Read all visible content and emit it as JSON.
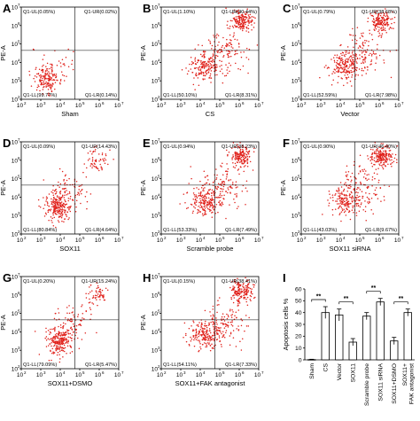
{
  "chart_data": [
    {
      "type": "scatter",
      "panel": "A",
      "xlabel": "Sham",
      "ylabel": "PE-A",
      "ticks": [
        "10",
        "10",
        "10",
        "10",
        "10",
        "10"
      ],
      "tick_exponents": [
        "2",
        "3",
        "4",
        "5",
        "6",
        "7"
      ],
      "quadrants": {
        "UL": "Q1-UL(0.05%)",
        "UR": "Q1-UR(0.02%)",
        "LL": "Q1-LL(99.77%)",
        "LR": "Q1-LR(0.14%)"
      },
      "point_color": "#e0201a",
      "clusters": [
        {
          "cx": 3.3,
          "cy": 3.1,
          "sx": 0.35,
          "sy": 0.35,
          "n": 150
        },
        {
          "cx": 3.8,
          "cy": 3.8,
          "sx": 0.6,
          "sy": 0.6,
          "n": 40
        }
      ]
    },
    {
      "type": "scatter",
      "panel": "B",
      "xlabel": "CS",
      "ylabel": "PE-A",
      "ticks": [
        "10",
        "10",
        "10",
        "10",
        "10",
        "10"
      ],
      "tick_exponents": [
        "2",
        "3",
        "4",
        "5",
        "6",
        "7"
      ],
      "quadrants": {
        "UL": "Q1-UL(1.10%)",
        "UR": "Q1-UR(40.44%)",
        "LL": "Q1-LL(50.10%)",
        "LR": "Q1-LR(8.31%)"
      },
      "point_color": "#e0201a",
      "clusters": [
        {
          "cx": 6.1,
          "cy": 6.2,
          "sx": 0.28,
          "sy": 0.28,
          "n": 170
        },
        {
          "cx": 4.3,
          "cy": 3.8,
          "sx": 0.45,
          "sy": 0.4,
          "n": 190
        },
        {
          "cx": 5.2,
          "cy": 4.6,
          "sx": 0.6,
          "sy": 0.6,
          "n": 110
        }
      ]
    },
    {
      "type": "scatter",
      "panel": "C",
      "xlabel": "Vector",
      "ylabel": "PE-A",
      "ticks": [
        "10",
        "10",
        "10",
        "10",
        "10",
        "10"
      ],
      "tick_exponents": [
        "2",
        "3",
        "4",
        "5",
        "6",
        "7"
      ],
      "quadrants": {
        "UL": "Q1-UL(0.79%)",
        "UR": "Q1-UR(38.68%)",
        "LL": "Q1-LL(52.59%)",
        "LR": "Q1-LR(7.98%)"
      },
      "point_color": "#e0201a",
      "clusters": [
        {
          "cx": 6.1,
          "cy": 6.2,
          "sx": 0.28,
          "sy": 0.28,
          "n": 160
        },
        {
          "cx": 4.3,
          "cy": 3.8,
          "sx": 0.45,
          "sy": 0.4,
          "n": 200
        },
        {
          "cx": 5.2,
          "cy": 4.6,
          "sx": 0.6,
          "sy": 0.6,
          "n": 110
        }
      ]
    },
    {
      "type": "scatter",
      "panel": "D",
      "xlabel": "SOX11",
      "ylabel": "PE-A",
      "ticks": [
        "10",
        "10",
        "10",
        "10",
        "10",
        "10"
      ],
      "tick_exponents": [
        "2",
        "3",
        "4",
        "5",
        "6",
        "7"
      ],
      "quadrants": {
        "UL": "Q1-UL(0.09%)",
        "UR": "Q1-UR(14.43%)",
        "LL": "Q1-LL(80.84%)",
        "LR": "Q1-LR(4.64%)"
      },
      "point_color": "#e0201a",
      "clusters": [
        {
          "cx": 3.9,
          "cy": 3.5,
          "sx": 0.35,
          "sy": 0.4,
          "n": 220
        },
        {
          "cx": 4.6,
          "cy": 4.5,
          "sx": 0.45,
          "sy": 0.5,
          "n": 80
        },
        {
          "cx": 5.9,
          "cy": 6.0,
          "sx": 0.3,
          "sy": 0.3,
          "n": 60
        }
      ]
    },
    {
      "type": "scatter",
      "panel": "E",
      "xlabel": "Scramble probe",
      "ylabel": "PE-A",
      "ticks": [
        "10",
        "10",
        "10",
        "10",
        "10",
        "10"
      ],
      "tick_exponents": [
        "2",
        "3",
        "4",
        "5",
        "6",
        "7"
      ],
      "quadrants": {
        "UL": "Q1-UL(0.94%)",
        "UR": "Q1-UR(38.23%)",
        "LL": "Q1-LL(53.33%)",
        "LR": "Q1-LR(7.49%)"
      },
      "point_color": "#e0201a",
      "clusters": [
        {
          "cx": 6.1,
          "cy": 6.2,
          "sx": 0.28,
          "sy": 0.28,
          "n": 160
        },
        {
          "cx": 4.3,
          "cy": 3.8,
          "sx": 0.45,
          "sy": 0.4,
          "n": 200
        },
        {
          "cx": 5.2,
          "cy": 4.6,
          "sx": 0.6,
          "sy": 0.6,
          "n": 110
        }
      ]
    },
    {
      "type": "scatter",
      "panel": "F",
      "xlabel": "SOX11 siRNA",
      "ylabel": "PE-A",
      "ticks": [
        "10",
        "10",
        "10",
        "10",
        "10",
        "10"
      ],
      "tick_exponents": [
        "2",
        "3",
        "4",
        "5",
        "6",
        "7"
      ],
      "quadrants": {
        "UL": "Q1-UL(0.90%)",
        "UR": "Q1-UR(46.40%)",
        "LL": "Q1-LL(43.03%)",
        "LR": "Q1-LR(9.67%)"
      },
      "point_color": "#e0201a",
      "clusters": [
        {
          "cx": 6.1,
          "cy": 6.2,
          "sx": 0.28,
          "sy": 0.28,
          "n": 190
        },
        {
          "cx": 4.3,
          "cy": 3.8,
          "sx": 0.45,
          "sy": 0.4,
          "n": 170
        },
        {
          "cx": 5.2,
          "cy": 4.6,
          "sx": 0.6,
          "sy": 0.6,
          "n": 110
        }
      ]
    },
    {
      "type": "scatter",
      "panel": "G",
      "xlabel": "SOX11+DSMO",
      "ylabel": "PE-A",
      "ticks": [
        "10",
        "10",
        "10",
        "10",
        "10",
        "10"
      ],
      "tick_exponents": [
        "2",
        "3",
        "4",
        "5",
        "6",
        "7"
      ],
      "quadrants": {
        "UL": "Q1-UL(0.20%)",
        "UR": "Q1-UR(15.24%)",
        "LL": "Q1-LL(79.09%)",
        "LR": "Q1-LR(5.47%)"
      },
      "point_color": "#e0201a",
      "clusters": [
        {
          "cx": 3.9,
          "cy": 3.5,
          "sx": 0.35,
          "sy": 0.4,
          "n": 220
        },
        {
          "cx": 4.6,
          "cy": 4.5,
          "sx": 0.45,
          "sy": 0.5,
          "n": 80
        },
        {
          "cx": 5.9,
          "cy": 6.0,
          "sx": 0.3,
          "sy": 0.3,
          "n": 60
        }
      ]
    },
    {
      "type": "scatter",
      "panel": "H",
      "xlabel": "SOX11+FAK antagonist",
      "ylabel": "PE-A",
      "ticks": [
        "10",
        "10",
        "10",
        "10",
        "10",
        "10"
      ],
      "tick_exponents": [
        "2",
        "3",
        "4",
        "5",
        "6",
        "7"
      ],
      "quadrants": {
        "UL": "Q1-UL(0.15%)",
        "UR": "Q1-UR(38.41%)",
        "LL": "Q1-LL(54.11%)",
        "LR": "Q1-LR(7.33%)"
      },
      "point_color": "#e0201a",
      "clusters": [
        {
          "cx": 6.1,
          "cy": 6.2,
          "sx": 0.28,
          "sy": 0.28,
          "n": 160
        },
        {
          "cx": 4.3,
          "cy": 3.8,
          "sx": 0.45,
          "sy": 0.4,
          "n": 200
        },
        {
          "cx": 5.2,
          "cy": 4.6,
          "sx": 0.6,
          "sy": 0.6,
          "n": 110
        }
      ]
    },
    {
      "type": "bar",
      "panel": "I",
      "ylabel": "Apoptosis cells %",
      "ylim": [
        0,
        60
      ],
      "yticks": [
        "0",
        "10",
        "20",
        "30",
        "40",
        "50",
        "60"
      ],
      "categories": [
        "Sham",
        "CS",
        "Vector",
        "SOX11",
        "Scramble probe",
        "SOX11 siRNA",
        "SOX11+DSMO",
        "SOX11+\nFAK antagonist"
      ],
      "values": [
        0.2,
        40,
        38,
        15,
        37,
        49,
        16,
        40
      ],
      "errors": [
        0.3,
        5,
        5,
        3,
        3,
        3,
        3,
        3
      ],
      "significance": [
        {
          "from": 0,
          "to": 1,
          "label": "**"
        },
        {
          "from": 2,
          "to": 3,
          "label": "**"
        },
        {
          "from": 4,
          "to": 5,
          "label": "**"
        },
        {
          "from": 6,
          "to": 7,
          "label": "**"
        }
      ]
    }
  ]
}
